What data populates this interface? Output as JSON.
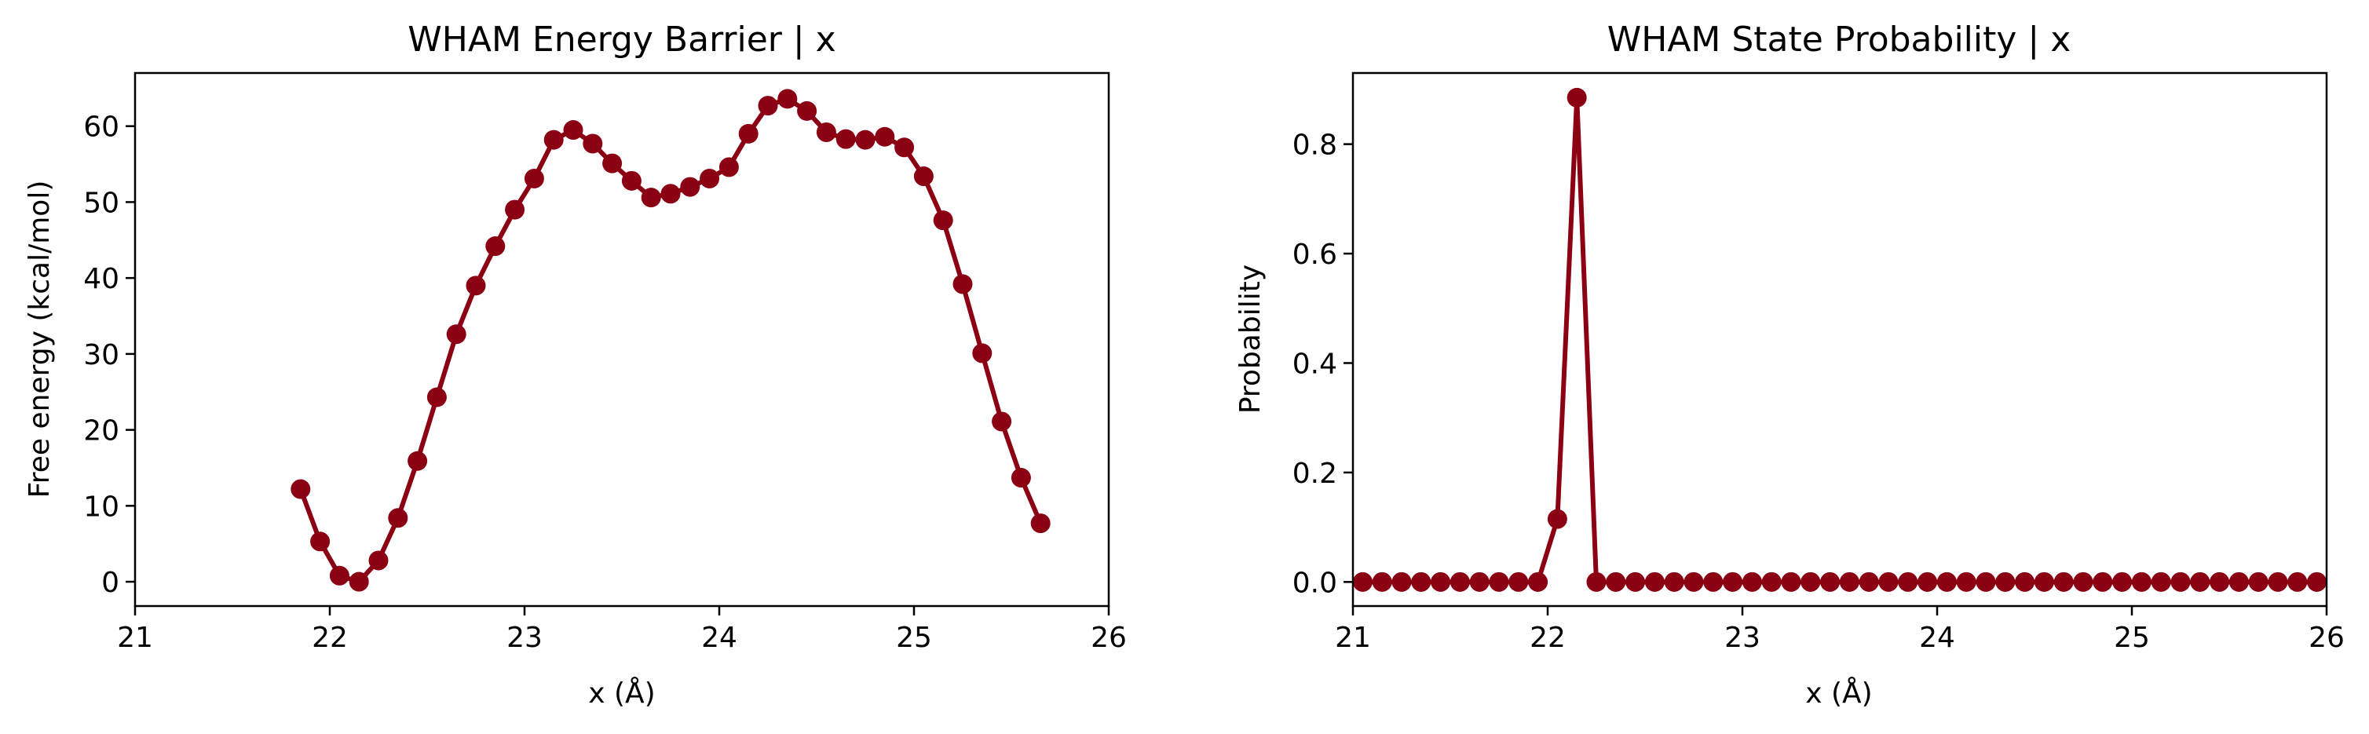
{
  "chart_data": [
    {
      "type": "line",
      "title": "WHAM Energy Barrier | x",
      "xlabel": "x (Å)",
      "ylabel": "Free energy (kcal/mol)",
      "xlim": [
        21,
        26
      ],
      "ylim": [
        -3.2,
        67
      ],
      "xticks": [
        "21",
        "22",
        "23",
        "24",
        "25",
        "26"
      ],
      "yticks": [
        "0",
        "10",
        "20",
        "30",
        "40",
        "50",
        "60"
      ],
      "color": "#8b0012",
      "grid": false,
      "series": [
        {
          "x": [
            21.85,
            21.95,
            22.05,
            22.15,
            22.25,
            22.35,
            22.45,
            22.55,
            22.65,
            22.75,
            22.85,
            22.95,
            23.05,
            23.15,
            23.25,
            23.35,
            23.45,
            23.55,
            23.65,
            23.75,
            23.85,
            23.95,
            24.05,
            24.15,
            24.25,
            24.35,
            24.45,
            24.55,
            24.65,
            24.75,
            24.85,
            24.95,
            25.05,
            25.15,
            25.25,
            25.35,
            25.45,
            25.55,
            25.65
          ],
          "y": [
            12.2,
            5.3,
            0.8,
            0.0,
            2.8,
            8.4,
            15.9,
            24.3,
            32.6,
            39.0,
            44.2,
            49.0,
            53.1,
            58.2,
            59.5,
            57.7,
            55.1,
            52.8,
            50.6,
            51.1,
            52.0,
            53.1,
            54.6,
            59.0,
            62.7,
            63.6,
            62.0,
            59.2,
            58.3,
            58.2,
            58.6,
            57.2,
            53.4,
            47.6,
            39.2,
            30.1,
            21.1,
            13.7,
            7.7
          ]
        }
      ]
    },
    {
      "type": "line",
      "title": "WHAM State Probability | x",
      "xlabel": "x (Å)",
      "ylabel": "Probability",
      "xlim": [
        21,
        26
      ],
      "ylim": [
        -0.044,
        0.93
      ],
      "xticks": [
        "21",
        "22",
        "23",
        "24",
        "25",
        "26"
      ],
      "yticks": [
        "0.0",
        "0.2",
        "0.4",
        "0.6",
        "0.8"
      ],
      "color": "#8b0012",
      "grid": false,
      "series": [
        {
          "x": [
            21.05,
            21.15,
            21.25,
            21.35,
            21.45,
            21.55,
            21.65,
            21.75,
            21.85,
            21.95,
            22.05,
            22.15,
            22.25,
            22.35,
            22.45,
            22.55,
            22.65,
            22.75,
            22.85,
            22.95,
            23.05,
            23.15,
            23.25,
            23.35,
            23.45,
            23.55,
            23.65,
            23.75,
            23.85,
            23.95,
            24.05,
            24.15,
            24.25,
            24.35,
            24.45,
            24.55,
            24.65,
            24.75,
            24.85,
            24.95,
            25.05,
            25.15,
            25.25,
            25.35,
            25.45,
            25.55,
            25.65,
            25.75,
            25.85,
            25.95
          ],
          "y": [
            0,
            0,
            0,
            0,
            0,
            0,
            0,
            0,
            0,
            0,
            0.115,
            0.885,
            0,
            0,
            0,
            0,
            0,
            0,
            0,
            0,
            0,
            0,
            0,
            0,
            0,
            0,
            0,
            0,
            0,
            0,
            0,
            0,
            0,
            0,
            0,
            0,
            0,
            0,
            0,
            0,
            0,
            0,
            0,
            0,
            0,
            0,
            0,
            0,
            0,
            0
          ]
        }
      ]
    }
  ]
}
